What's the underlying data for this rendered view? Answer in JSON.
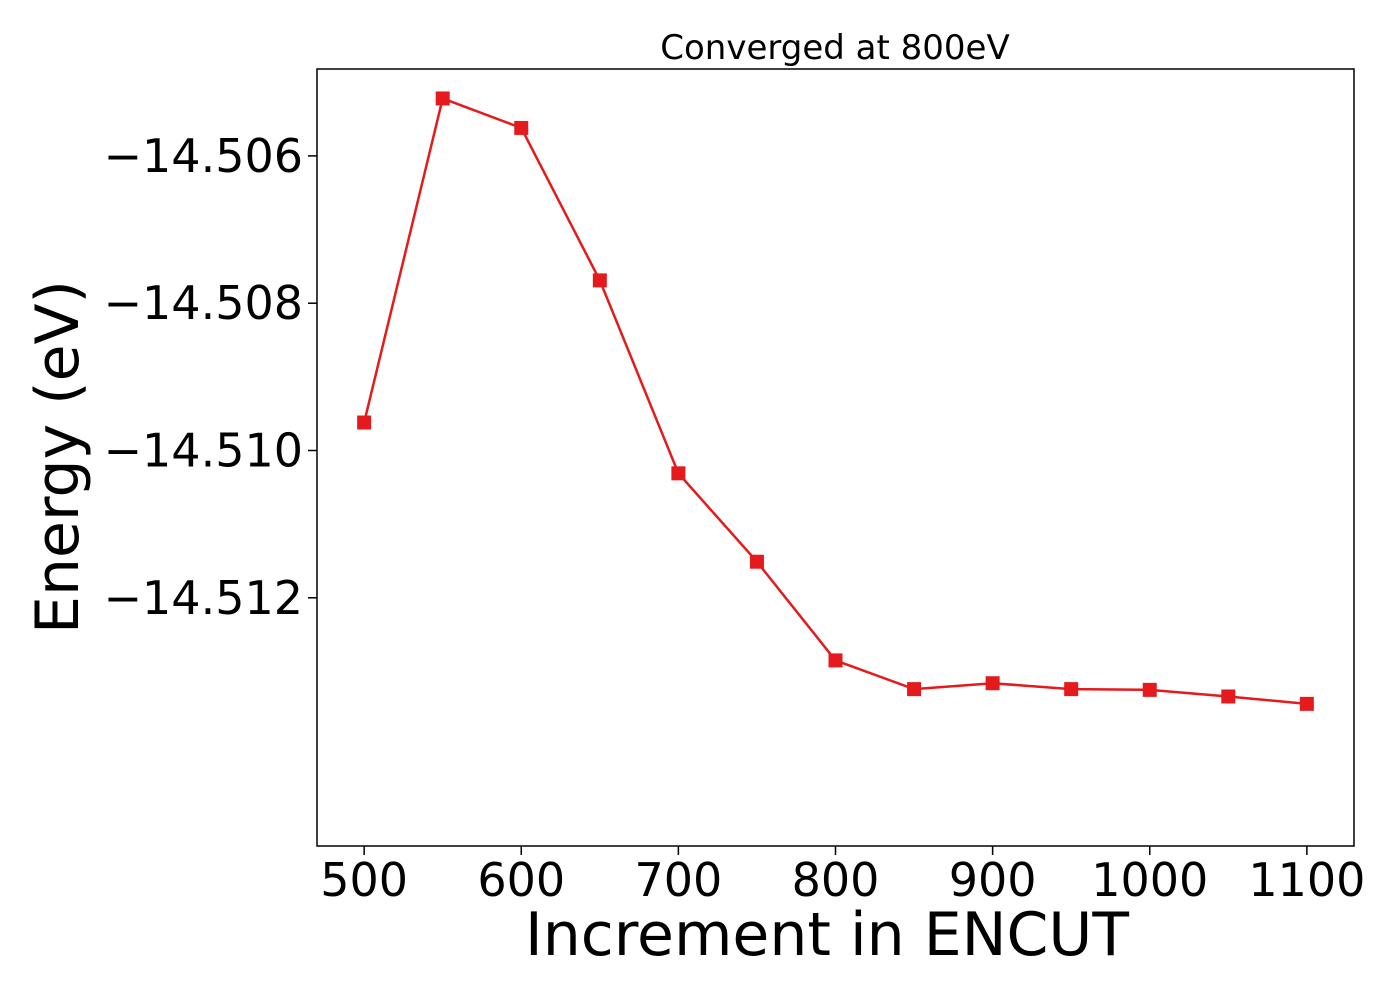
{
  "chart_data": {
    "type": "line",
    "title": "Converged at 800eV",
    "xlabel": "Increment in ENCUT",
    "ylabel": "Energy (eV)",
    "x": [
      500,
      550,
      600,
      650,
      700,
      750,
      800,
      850,
      900,
      950,
      1000,
      1050,
      1100
    ],
    "series": [
      {
        "values": [
          -14.50962,
          -14.50522,
          -14.50562,
          -14.50769,
          -14.51031,
          -14.51151,
          -14.51285,
          -14.51324,
          -14.51316,
          -14.51324,
          -14.51325,
          -14.51334,
          -14.51344
        ]
      }
    ],
    "xticks": [
      500,
      600,
      700,
      800,
      900,
      1000,
      1100
    ],
    "xtick_labels": [
      "500",
      "600",
      "700",
      "800",
      "900",
      "1000",
      "1100"
    ],
    "yticks": [
      -14.506,
      -14.508,
      -14.51,
      -14.512
    ],
    "ytick_labels": [
      "−14.506",
      "−14.508",
      "−14.510",
      "−14.512"
    ],
    "xlim": [
      470,
      1130
    ],
    "ylim": [
      -14.51537,
      -14.50482
    ],
    "grid": false,
    "legend": "none",
    "line_color": "#e41a1c",
    "marker": "square"
  }
}
